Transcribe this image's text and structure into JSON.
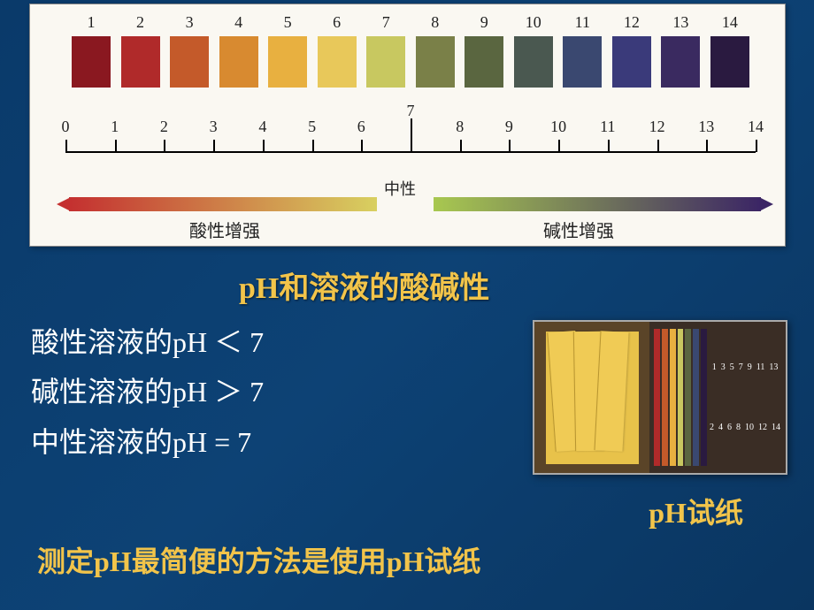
{
  "chart": {
    "swatches": [
      {
        "num": "1",
        "color": "#8a1820"
      },
      {
        "num": "2",
        "color": "#b02a2a"
      },
      {
        "num": "3",
        "color": "#c45a2a"
      },
      {
        "num": "4",
        "color": "#d88a30"
      },
      {
        "num": "5",
        "color": "#e8b040"
      },
      {
        "num": "6",
        "color": "#e8c85a"
      },
      {
        "num": "7",
        "color": "#c8c860"
      },
      {
        "num": "8",
        "color": "#7a8048"
      },
      {
        "num": "9",
        "color": "#5a6640"
      },
      {
        "num": "10",
        "color": "#4a5850"
      },
      {
        "num": "11",
        "color": "#3a4870"
      },
      {
        "num": "12",
        "color": "#3a3a7a"
      },
      {
        "num": "13",
        "color": "#3a2a60"
      },
      {
        "num": "14",
        "color": "#2a1a40"
      }
    ],
    "scale_ticks": [
      "0",
      "1",
      "2",
      "3",
      "4",
      "5",
      "6",
      "7",
      "8",
      "9",
      "10",
      "11",
      "12",
      "13",
      "14"
    ],
    "neutral_label": "中性",
    "neutral_tick": "7",
    "acid_label": "酸性增强",
    "base_label": "碱性增强",
    "left_gradient_from": "#c43030",
    "left_gradient_to": "#d8d060",
    "right_gradient_from": "#a8c850",
    "right_gradient_to": "#3b2565"
  },
  "title": "pH和溶液的酸碱性",
  "rules": {
    "acid": "酸性溶液的pH ＜  7",
    "base": "碱性溶液的pH ＞ 7",
    "neutral": "中性溶液的pH  =  7"
  },
  "paper": {
    "caption": "pH试纸",
    "strip_colors": [
      [
        "#b02a2a",
        "#b02a2a"
      ],
      [
        "#c45a2a",
        "#c45a2a"
      ],
      [
        "#e8b040",
        "#e8b040"
      ],
      [
        "#c8c860",
        "#c8c860"
      ],
      [
        "#5a6640",
        "#5a6640"
      ],
      [
        "#3a4870",
        "#3a4870"
      ],
      [
        "#2a1a40",
        "#2a1a40"
      ]
    ],
    "numbers_top": [
      "1",
      "3",
      "5",
      "7",
      "9",
      "11",
      "13"
    ],
    "numbers_bottom": [
      "2",
      "4",
      "6",
      "8",
      "10",
      "12",
      "14"
    ]
  },
  "footer": "测定pH最简便的方法是使用pH试纸"
}
